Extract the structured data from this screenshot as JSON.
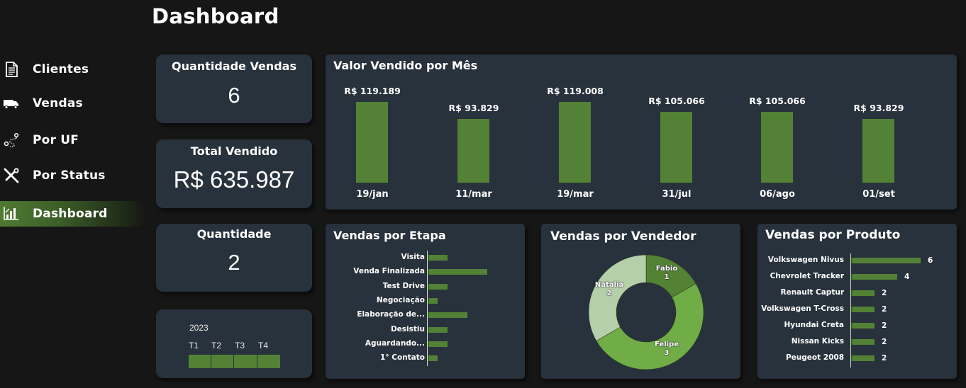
{
  "header": {
    "title": "Dashboard"
  },
  "sidebar": {
    "items": [
      {
        "label": "Clientes",
        "icon": "document-icon",
        "active": false
      },
      {
        "label": "Vendas",
        "icon": "truck-icon",
        "active": false
      },
      {
        "label": "Por UF",
        "icon": "route-pin-icon",
        "active": false
      },
      {
        "label": "Por Status",
        "icon": "tools-icon",
        "active": false
      },
      {
        "label": "Dashboard",
        "icon": "bar-chart-icon",
        "active": true
      }
    ]
  },
  "kpis": {
    "quantidade_vendas": {
      "title": "Quantidade Vendas",
      "value": "6"
    },
    "total_vendido": {
      "title": "Total Vendido",
      "value": "R$ 635.987"
    },
    "quantidade": {
      "title": "Quantidade",
      "value": "2"
    }
  },
  "timeline": {
    "year": "2023",
    "quarters": [
      "T1",
      "T2",
      "T3",
      "T4"
    ],
    "selected_color": "#538135"
  },
  "colors": {
    "background": "#161616",
    "card": "#28323c",
    "bar": "#538135",
    "donut_fabio": "#548235",
    "donut_felipe": "#70ad47",
    "donut_natalia": "#b5cfaa"
  },
  "chart_data": [
    {
      "type": "bar",
      "title": "Valor Vendido por Mês",
      "categories": [
        "19/jan",
        "11/mar",
        "19/mar",
        "31/jul",
        "06/ago",
        "01/set"
      ],
      "values": [
        119189,
        93829,
        119008,
        105066,
        105066,
        93829
      ],
      "data_labels": [
        "R$ 119.189",
        "R$ 93.829",
        "R$ 119.008",
        "R$ 105.066",
        "R$ 105.066",
        "R$ 93.829"
      ],
      "xlabel": "",
      "ylabel": "",
      "grid": false,
      "legend": "none"
    },
    {
      "type": "bar",
      "orientation": "horizontal",
      "title": "Vendas por Etapa",
      "categories": [
        "Visita",
        "Venda Finalizada",
        "Test Drive",
        "Negociação",
        "Elaboração de...",
        "Desistiu",
        "Aguardando...",
        "1° Contato"
      ],
      "values": [
        2,
        6,
        2,
        1,
        4,
        2,
        2,
        1
      ],
      "grid": false,
      "legend": "none"
    },
    {
      "type": "pie",
      "subtype": "donut",
      "title": "Vendas por Vendedor",
      "categories": [
        "Fabio",
        "Felipe",
        "Natalia"
      ],
      "values": [
        1,
        3,
        2
      ]
    },
    {
      "type": "bar",
      "orientation": "horizontal",
      "title": "Vendas por Produto",
      "categories": [
        "Volkswagen Nivus",
        "Chevrolet Tracker",
        "Renault Captur",
        "Volkswagen T-Cross",
        "Hyundai Creta",
        "Nissan Kicks",
        "Peugeot 2008"
      ],
      "values": [
        6,
        4,
        2,
        2,
        2,
        2,
        2
      ],
      "grid": false,
      "legend": "none"
    }
  ]
}
